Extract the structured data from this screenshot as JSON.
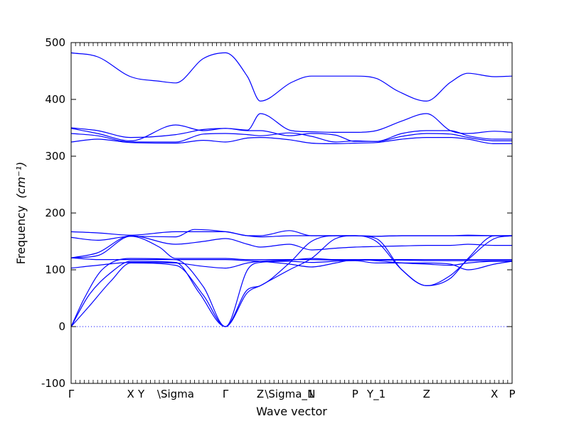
{
  "chart_data": {
    "type": "line",
    "title": "",
    "xlabel": "Wave vector",
    "ylabel": "Frequency",
    "ylabel_unit": "(cm⁻¹)",
    "ylim": [
      -100,
      500
    ],
    "yticks": [
      -100,
      0,
      100,
      200,
      300,
      400,
      500
    ],
    "xlim": [
      0,
      1
    ],
    "high_symmetry_points": [
      {
        "label": "Γ",
        "x": 0.0
      },
      {
        "label": "X",
        "x": 0.135
      },
      {
        "label": "Y",
        "x": 0.159
      },
      {
        "label": "\\Sigma",
        "x": 0.237
      },
      {
        "label": "Γ",
        "x": 0.35
      },
      {
        "label": "Z",
        "x": 0.429
      },
      {
        "label": "\\Sigma_1",
        "x": 0.495
      },
      {
        "label": "N",
        "x": 0.545
      },
      {
        "label": "P",
        "x": 0.644
      },
      {
        "label": "Y_1",
        "x": 0.692
      },
      {
        "label": "Z",
        "x": 0.806
      },
      {
        "label": "X",
        "x": 0.96
      },
      {
        "label": "P",
        "x": 1.0
      }
    ],
    "reference_line": {
      "y": 0,
      "style": "dotted"
    },
    "line_color": "#0000ff",
    "grid": false,
    "legend": "none",
    "series": [
      {
        "x": [
          0,
          0.06,
          0.135,
          0.2,
          0.237,
          0.3,
          0.35,
          0.4,
          0.429,
          0.5,
          0.545,
          0.6,
          0.644,
          0.692,
          0.74,
          0.806,
          0.86,
          0.9,
          0.96,
          1.0
        ],
        "values": [
          482,
          475,
          440,
          432,
          429,
          472,
          482,
          440,
          397,
          430,
          441,
          441,
          441,
          437,
          415,
          397,
          430,
          446,
          440,
          441
        ]
      },
      {
        "x": [
          0,
          0.06,
          0.135,
          0.237,
          0.3,
          0.35,
          0.4,
          0.429,
          0.5,
          0.545,
          0.6,
          0.644,
          0.692,
          0.75,
          0.806,
          0.86,
          0.9,
          0.96,
          1.0
        ],
        "values": [
          350,
          345,
          333,
          338,
          347,
          349,
          346,
          375,
          345,
          343,
          342,
          342,
          345,
          362,
          375,
          345,
          340,
          344,
          342
        ]
      },
      {
        "x": [
          0,
          0.06,
          0.135,
          0.237,
          0.3,
          0.35,
          0.4,
          0.429,
          0.495,
          0.545,
          0.6,
          0.644,
          0.692,
          0.75,
          0.806,
          0.86,
          0.9,
          0.96,
          1.0
        ],
        "values": [
          349,
          340,
          327,
          355,
          345,
          349,
          345,
          345,
          336,
          340,
          337,
          326,
          326,
          340,
          345,
          345,
          336,
          330,
          330
        ]
      },
      {
        "x": [
          0,
          0.06,
          0.135,
          0.237,
          0.3,
          0.35,
          0.4,
          0.429,
          0.495,
          0.545,
          0.6,
          0.644,
          0.692,
          0.75,
          0.806,
          0.86,
          0.9,
          0.96,
          1.0
        ],
        "values": [
          340,
          336,
          325,
          325,
          339,
          340,
          338,
          336,
          341,
          335,
          325,
          327,
          326,
          335,
          340,
          339,
          333,
          327,
          327
        ]
      },
      {
        "x": [
          0,
          0.06,
          0.135,
          0.237,
          0.3,
          0.35,
          0.4,
          0.429,
          0.495,
          0.545,
          0.6,
          0.644,
          0.692,
          0.75,
          0.806,
          0.86,
          0.9,
          0.96,
          1.0
        ],
        "values": [
          325,
          330,
          324,
          323,
          328,
          325,
          332,
          333,
          329,
          323,
          322,
          323,
          324,
          330,
          333,
          333,
          330,
          322,
          322
        ]
      },
      {
        "x": [
          0,
          0.06,
          0.135,
          0.237,
          0.3,
          0.35,
          0.4,
          0.429,
          0.495,
          0.545,
          0.6,
          0.644,
          0.692,
          0.75,
          0.806,
          0.86,
          0.9,
          0.96,
          1.0
        ],
        "values": [
          167,
          165,
          161,
          167,
          167,
          167,
          160,
          160,
          169,
          160,
          160,
          160,
          159,
          160,
          160,
          160,
          161,
          160,
          160
        ]
      },
      {
        "x": [
          0,
          0.06,
          0.135,
          0.237,
          0.28,
          0.35,
          0.4,
          0.429,
          0.5,
          0.545,
          0.6,
          0.644,
          0.692,
          0.75,
          0.806,
          0.86,
          0.9,
          0.96,
          1.0
        ],
        "values": [
          157,
          152,
          159,
          158,
          171,
          167,
          160,
          158,
          160,
          160,
          160,
          160,
          159,
          160,
          160,
          160,
          160,
          160,
          160
        ]
      },
      {
        "x": [
          0,
          0.06,
          0.135,
          0.237,
          0.3,
          0.35,
          0.4,
          0.429,
          0.495,
          0.545,
          0.6,
          0.644,
          0.692,
          0.75,
          0.806,
          0.86,
          0.9,
          0.96,
          1.0
        ],
        "values": [
          121,
          130,
          160,
          145,
          150,
          155,
          145,
          140,
          145,
          135,
          138,
          140,
          141,
          142,
          143,
          143,
          145,
          143,
          143
        ]
      },
      {
        "x": [
          0,
          0.06,
          0.135,
          0.2,
          0.237,
          0.3,
          0.35,
          0.4,
          0.429,
          0.495,
          0.545,
          0.6,
          0.644,
          0.692,
          0.75,
          0.806,
          0.86,
          0.9,
          0.96,
          1.0
        ],
        "values": [
          121,
          125,
          159,
          140,
          120,
          120,
          120,
          118,
          118,
          118,
          118,
          117,
          117,
          117,
          117,
          116,
          116,
          116,
          116,
          116
        ]
      },
      {
        "x": [
          0,
          0.06,
          0.135,
          0.237,
          0.3,
          0.35,
          0.4,
          0.429,
          0.495,
          0.545,
          0.6,
          0.644,
          0.692,
          0.75,
          0.806,
          0.86,
          0.9,
          0.96,
          1.0
        ],
        "values": [
          103,
          108,
          113,
          112,
          106,
          103,
          112,
          115,
          117,
          120,
          118,
          118,
          116,
          112,
          110,
          108,
          112,
          115,
          115
        ]
      },
      {
        "x": [
          0,
          0.03,
          0.07,
          0.135,
          0.237,
          0.3,
          0.35,
          0.4,
          0.429,
          0.495,
          0.545,
          0.6,
          0.644,
          0.692,
          0.75,
          0.806,
          0.86,
          0.9,
          0.96,
          1.0
        ],
        "values": [
          0,
          50,
          100,
          120,
          118,
          70,
          0,
          65,
          72,
          112,
          150,
          160,
          160,
          150,
          100,
          72,
          85,
          120,
          160,
          160
        ]
      },
      {
        "x": [
          0,
          0.04,
          0.09,
          0.135,
          0.237,
          0.29,
          0.35,
          0.4,
          0.429,
          0.495,
          0.545,
          0.6,
          0.644,
          0.692,
          0.75,
          0.806,
          0.86,
          0.9,
          0.96,
          1.0
        ],
        "values": [
          0,
          55,
          95,
          115,
          113,
          60,
          0,
          60,
          72,
          100,
          120,
          155,
          160,
          155,
          100,
          72,
          90,
          118,
          155,
          160
        ]
      },
      {
        "x": [
          0,
          0.04,
          0.09,
          0.135,
          0.237,
          0.3,
          0.35,
          0.4,
          0.429,
          0.495,
          0.545,
          0.6,
          0.644,
          0.692,
          0.75,
          0.806,
          0.86,
          0.9,
          0.96,
          1.0
        ],
        "values": [
          0,
          35,
          80,
          112,
          108,
          55,
          0,
          100,
          113,
          115,
          113,
          115,
          116,
          112,
          112,
          112,
          110,
          100,
          110,
          115
        ]
      },
      {
        "x": [
          0,
          0.06,
          0.135,
          0.237,
          0.3,
          0.35,
          0.4,
          0.429,
          0.495,
          0.545,
          0.6,
          0.644,
          0.692,
          0.75,
          0.806,
          0.86,
          0.9,
          0.96,
          1.0
        ],
        "values": [
          121,
          118,
          118,
          118,
          118,
          118,
          116,
          115,
          110,
          105,
          112,
          118,
          118,
          118,
          118,
          118,
          118,
          118,
          118
        ]
      }
    ]
  }
}
